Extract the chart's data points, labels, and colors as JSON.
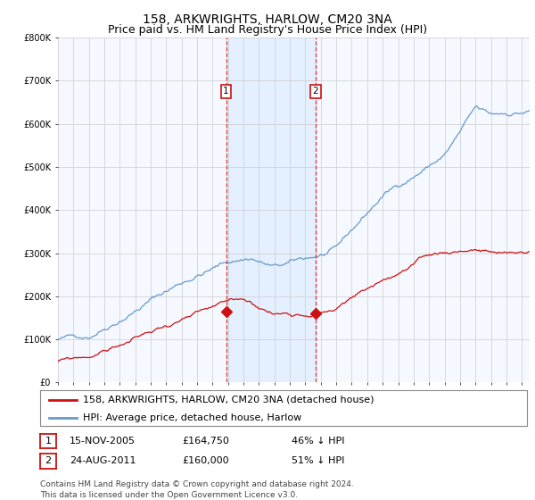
{
  "title": "158, ARKWRIGHTS, HARLOW, CM20 3NA",
  "subtitle": "Price paid vs. HM Land Registry's House Price Index (HPI)",
  "ylim": [
    0,
    800000
  ],
  "xlim_start": 1995.0,
  "xlim_end": 2025.5,
  "hpi_color": "#6699cc",
  "property_color": "#cc1111",
  "vline_color": "#dd2222",
  "background_color": "#ffffff",
  "plot_bg_color": "#f5f8ff",
  "grid_color": "#cccccc",
  "marker1_x": 2005.88,
  "marker2_x": 2011.65,
  "legend_label1": "158, ARKWRIGHTS, HARLOW, CM20 3NA (detached house)",
  "legend_label2": "HPI: Average price, detached house, Harlow",
  "table_rows": [
    {
      "num": "1",
      "date": "15-NOV-2005",
      "price": "£164,750",
      "hpi": "46% ↓ HPI"
    },
    {
      "num": "2",
      "date": "24-AUG-2011",
      "price": "£160,000",
      "hpi": "51% ↓ HPI"
    }
  ],
  "copyright": "Contains HM Land Registry data © Crown copyright and database right 2024.\nThis data is licensed under the Open Government Licence v3.0.",
  "title_fontsize": 10,
  "subtitle_fontsize": 9,
  "tick_fontsize": 7,
  "legend_fontsize": 8,
  "table_fontsize": 8,
  "copyright_fontsize": 6.5,
  "sale1_price": 164750,
  "sale2_price": 160000,
  "vspan_color": "#ddeeff",
  "vspan_alpha": 0.7
}
